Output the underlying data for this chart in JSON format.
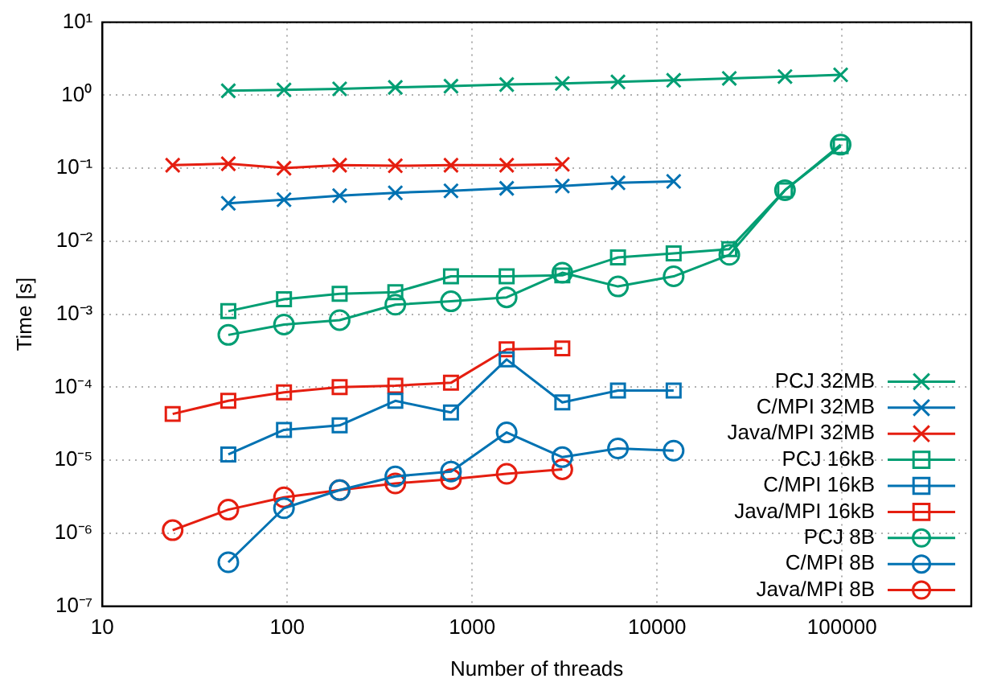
{
  "chart_data": {
    "type": "line",
    "xlabel": "Number of threads",
    "ylabel": "Time [s]",
    "log": "xy",
    "grid": true,
    "legend": "bottom right",
    "line_style": "solid",
    "xlim": [
      10,
      500000
    ],
    "xticks": [
      10,
      100,
      1000,
      10000,
      100000
    ],
    "ylim": [
      1e-07,
      10
    ],
    "yticks": [
      {
        "value": 1e-07,
        "label": "10⁻⁷"
      },
      {
        "value": 1e-06,
        "label": "10⁻⁶"
      },
      {
        "value": 1e-05,
        "label": "10⁻⁵"
      },
      {
        "value": 0.0001,
        "label": "10⁻⁴"
      },
      {
        "value": 0.001,
        "label": "10⁻³"
      },
      {
        "value": 0.01,
        "label": "10⁻²"
      },
      {
        "value": 0.1,
        "label": "10⁻¹"
      },
      {
        "value": 1,
        "label": "10⁰"
      },
      {
        "value": 10,
        "label": "10¹"
      }
    ],
    "series": [
      {
        "name": "PCJ 32MB",
        "color": "#009e73",
        "marker": "cross",
        "x": [
          48,
          96,
          192,
          384,
          768,
          1536,
          3072,
          6144,
          12288,
          24576,
          49152,
          98304
        ],
        "values": [
          1.15,
          1.18,
          1.22,
          1.28,
          1.33,
          1.4,
          1.45,
          1.52,
          1.6,
          1.7,
          1.8,
          1.9
        ]
      },
      {
        "name": "C/MPI 32MB",
        "color": "#0072b2",
        "marker": "cross",
        "x": [
          48,
          96,
          192,
          384,
          768,
          1536,
          3072,
          6144,
          12288
        ],
        "values": [
          0.033,
          0.037,
          0.042,
          0.046,
          0.049,
          0.053,
          0.057,
          0.063,
          0.066
        ]
      },
      {
        "name": "Java/MPI 32MB",
        "color": "#e51e10",
        "marker": "cross",
        "x": [
          24,
          48,
          96,
          192,
          384,
          768,
          1536,
          3072
        ],
        "values": [
          0.11,
          0.115,
          0.1,
          0.11,
          0.108,
          0.11,
          0.11,
          0.113
        ]
      },
      {
        "name": "PCJ 16kB",
        "color": "#009e73",
        "marker": "square",
        "x": [
          48,
          96,
          192,
          384,
          768,
          1536,
          3072,
          6144,
          12288,
          24576,
          49152,
          98304
        ],
        "values": [
          0.0011,
          0.0016,
          0.0019,
          0.002,
          0.0033,
          0.0033,
          0.0034,
          0.006,
          0.0068,
          0.0078,
          0.05,
          0.2
        ]
      },
      {
        "name": "C/MPI 16kB",
        "color": "#0072b2",
        "marker": "square",
        "x": [
          48,
          96,
          192,
          384,
          768,
          1536,
          3072,
          6144,
          12288
        ],
        "values": [
          1.2e-05,
          2.6e-05,
          3e-05,
          6.5e-05,
          4.5e-05,
          0.00024,
          6.2e-05,
          9e-05,
          9e-05
        ]
      },
      {
        "name": "Java/MPI 16kB",
        "color": "#e51e10",
        "marker": "square",
        "x": [
          24,
          48,
          96,
          192,
          384,
          768,
          1536,
          3072
        ],
        "values": [
          4.3e-05,
          6.5e-05,
          8.5e-05,
          0.0001,
          0.000105,
          0.000115,
          0.00033,
          0.00034
        ]
      },
      {
        "name": "PCJ 8B",
        "color": "#009e73",
        "marker": "circle",
        "x": [
          48,
          96,
          192,
          384,
          768,
          1536,
          3072,
          6144,
          12288,
          24576,
          49152,
          98304
        ],
        "values": [
          0.00052,
          0.00072,
          0.00083,
          0.00135,
          0.0015,
          0.0017,
          0.0037,
          0.0024,
          0.0033,
          0.0065,
          0.05,
          0.21
        ]
      },
      {
        "name": "C/MPI 8B",
        "color": "#0072b2",
        "marker": "circle",
        "x": [
          48,
          96,
          192,
          384,
          768,
          1536,
          3072,
          6144,
          12288
        ],
        "values": [
          4e-07,
          2.2e-06,
          3.9e-06,
          6e-06,
          7e-06,
          2.4e-05,
          1.1e-05,
          1.45e-05,
          1.35e-05
        ]
      },
      {
        "name": "Java/MPI 8B",
        "color": "#e51e10",
        "marker": "circle",
        "x": [
          24,
          48,
          96,
          192,
          384,
          768,
          1536,
          3072
        ],
        "values": [
          1.1e-06,
          2.1e-06,
          3.1e-06,
          3.9e-06,
          4.8e-06,
          5.5e-06,
          6.5e-06,
          7.5e-06
        ]
      }
    ]
  }
}
